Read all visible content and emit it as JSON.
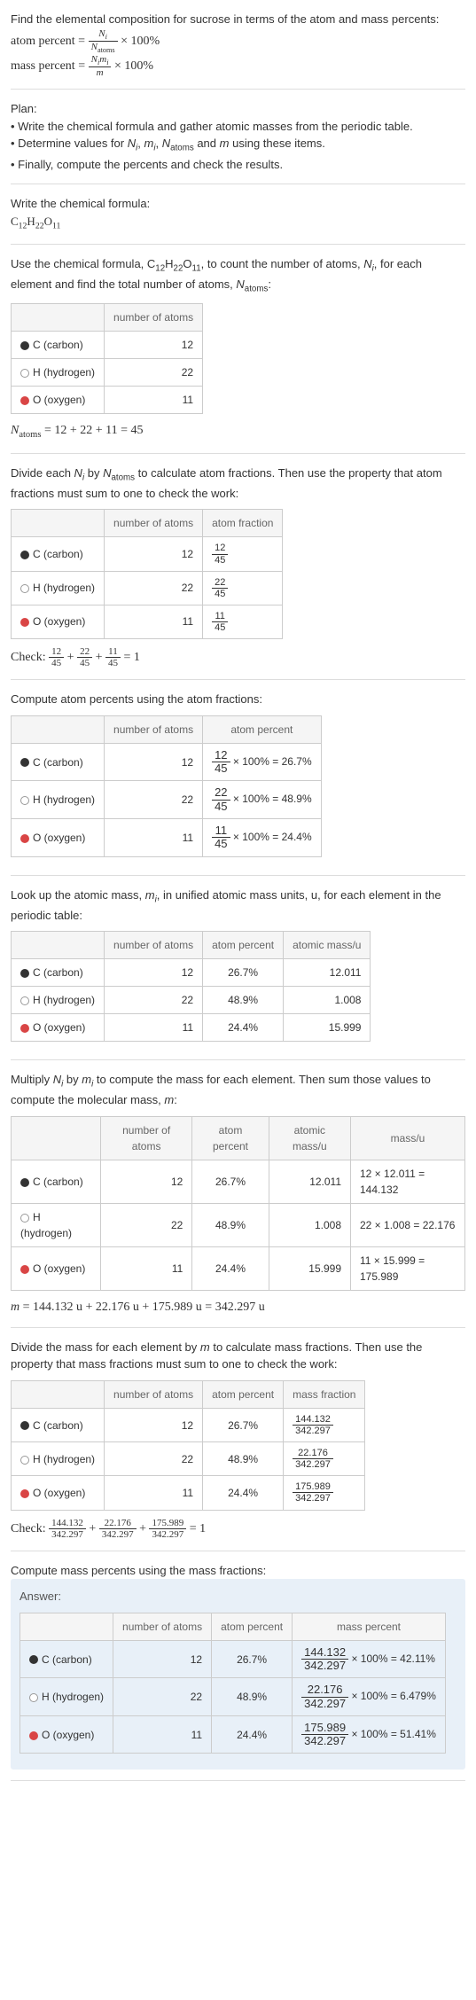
{
  "intro": {
    "line1": "Find the elemental composition for sucrose in terms of the atom and mass percents:",
    "atom_percent_label": "atom percent =",
    "atom_percent_frac_num": "N_i",
    "atom_percent_frac_den": "N_atoms",
    "times_100": " × 100%",
    "mass_percent_label": "mass percent =",
    "mass_percent_frac_num": "N_i m_i",
    "mass_percent_frac_den": "m"
  },
  "plan": {
    "heading": "Plan:",
    "bullet1": "• Write the chemical formula and gather atomic masses from the periodic table.",
    "bullet2": "• Determine values for N_i, m_i, N_atoms and m using these items.",
    "bullet3": "• Finally, compute the percents and check the results."
  },
  "formula_section": {
    "line1": "Write the chemical formula:",
    "formula": "C₁₂H₂₂O₁₁"
  },
  "count_section": {
    "text1": "Use the chemical formula, C₁₂H₂₂O₁₁, to count the number of atoms, N_i, for each element and find the total number of atoms, N_atoms:",
    "col_atoms": "number of atoms",
    "c_label": "C (carbon)",
    "h_label": "H (hydrogen)",
    "o_label": "O (oxygen)",
    "c_n": "12",
    "h_n": "22",
    "o_n": "11",
    "total": "N_atoms = 12 + 22 + 11 = 45"
  },
  "atom_frac_section": {
    "text1": "Divide each N_i by N_atoms to calculate atom fractions. Then use the property that atom fractions must sum to one to check the work:",
    "col_atoms": "number of atoms",
    "col_frac": "atom fraction",
    "c_n": "12",
    "c_num": "12",
    "c_den": "45",
    "h_n": "22",
    "h_num": "22",
    "h_den": "45",
    "o_n": "11",
    "o_num": "11",
    "o_den": "45",
    "check_label": "Check: ",
    "check_eq": " = 1"
  },
  "atom_pct_section": {
    "text1": "Compute atom percents using the atom fractions:",
    "col_atoms": "number of atoms",
    "col_pct": "atom percent",
    "c_n": "12",
    "c_pct": " × 100% = 26.7%",
    "c_num": "12",
    "c_den": "45",
    "h_n": "22",
    "h_pct": " × 100% = 48.9%",
    "h_num": "22",
    "h_den": "45",
    "o_n": "11",
    "o_pct": " × 100% = 24.4%",
    "o_num": "11",
    "o_den": "45"
  },
  "atomic_mass_section": {
    "text1": "Look up the atomic mass, m_i, in unified atomic mass units, u, for each element in the periodic table:",
    "col_atoms": "number of atoms",
    "col_pct": "atom percent",
    "col_mass": "atomic mass/u",
    "c_n": "12",
    "c_pct": "26.7%",
    "c_m": "12.011",
    "h_n": "22",
    "h_pct": "48.9%",
    "h_m": "1.008",
    "o_n": "11",
    "o_pct": "24.4%",
    "o_m": "15.999"
  },
  "mass_calc_section": {
    "text1": "Multiply N_i by m_i to compute the mass for each element. Then sum those values to compute the molecular mass, m:",
    "col_atoms": "number of atoms",
    "col_pct": "atom percent",
    "col_amass": "atomic mass/u",
    "col_mass": "mass/u",
    "c_n": "12",
    "c_pct": "26.7%",
    "c_am": "12.011",
    "c_m": "12 × 12.011 = 144.132",
    "h_n": "22",
    "h_pct": "48.9%",
    "h_am": "1.008",
    "h_m": "22 × 1.008 = 22.176",
    "o_n": "11",
    "o_pct": "24.4%",
    "o_am": "15.999",
    "o_m": "11 × 15.999 = 175.989",
    "total": "m = 144.132 u + 22.176 u + 175.989 u = 342.297 u"
  },
  "mass_frac_section": {
    "text1": "Divide the mass for each element by m to calculate mass fractions. Then use the property that mass fractions must sum to one to check the work:",
    "col_atoms": "number of atoms",
    "col_pct": "atom percent",
    "col_mfrac": "mass fraction",
    "c_n": "12",
    "c_pct": "26.7%",
    "c_num": "144.132",
    "c_den": "342.297",
    "h_n": "22",
    "h_pct": "48.9%",
    "h_num": "22.176",
    "h_den": "342.297",
    "o_n": "11",
    "o_pct": "24.4%",
    "o_num": "175.989",
    "o_den": "342.297",
    "check_label": "Check: ",
    "check_eq": " = 1"
  },
  "answer_section": {
    "text1": "Compute mass percents using the mass fractions:",
    "answer_label": "Answer:",
    "col_atoms": "number of atoms",
    "col_pct": "atom percent",
    "col_mpct": "mass percent",
    "c_n": "12",
    "c_pct": "26.7%",
    "c_num": "144.132",
    "c_den": "342.297",
    "c_res": " × 100% = 42.11%",
    "h_n": "22",
    "h_pct": "48.9%",
    "h_num": "22.176",
    "h_den": "342.297",
    "h_res": " × 100% = 6.479%",
    "o_n": "11",
    "o_pct": "24.4%",
    "o_num": "175.989",
    "o_den": "342.297",
    "o_res": " × 100% = 51.41%"
  },
  "elem": {
    "c": "C (carbon)",
    "h": "H (hydrogen)",
    "o": "O (oxygen)"
  }
}
